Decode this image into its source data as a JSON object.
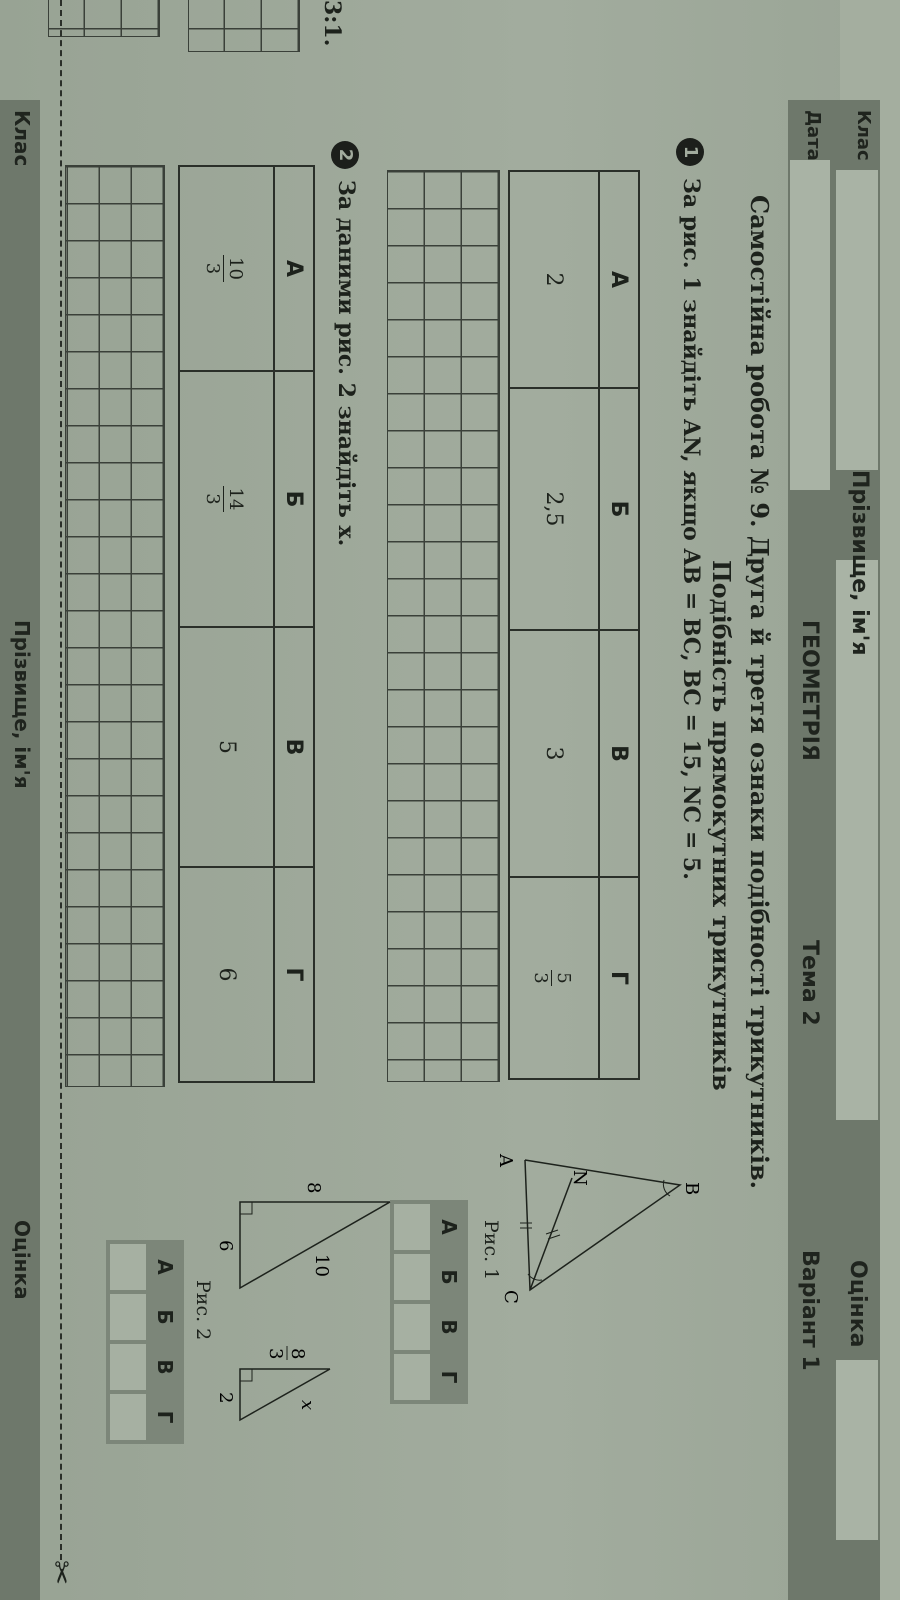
{
  "header": {
    "name_label": "Прізвище, ім'я",
    "date_label": "Дата",
    "class_label": "Клас",
    "subject": "ГЕОМЕТРІЯ",
    "topic": "Тема 2",
    "variant": "Варіант 1",
    "grade_label": "Оцінка"
  },
  "prev_page": {
    "fragment": "3:1."
  },
  "title": {
    "line1": "Самостійна робота № 9. Друга й третя ознаки подібності трикутників.",
    "line2": "Подібність прямокутних трикутників"
  },
  "tasks": [
    {
      "number": "1",
      "text": "За рис. 1 знайдіть AN, якщо AB = BC, BC = 15, NC = 5.",
      "options": [
        {
          "letter": "А",
          "value": "2"
        },
        {
          "letter": "Б",
          "value": "2,5"
        },
        {
          "letter": "В",
          "value": "3"
        },
        {
          "letter": "Г",
          "num": "5",
          "den": "3"
        }
      ],
      "figure": {
        "caption": "Рис. 1",
        "labels": [
          "A",
          "B",
          "C",
          "N"
        ]
      },
      "answer_letters": [
        "А",
        "Б",
        "В",
        "Г"
      ]
    },
    {
      "number": "2",
      "text": "За даними рис. 2 знайдіть x.",
      "options": [
        {
          "letter": "А",
          "num": "10",
          "den": "3"
        },
        {
          "letter": "Б",
          "num": "14",
          "den": "3"
        },
        {
          "letter": "В",
          "value": "5"
        },
        {
          "letter": "Г",
          "value": "6"
        }
      ],
      "figure": {
        "caption": "Рис. 2",
        "big": [
          "8",
          "6",
          "10"
        ],
        "small_num": "8",
        "small_den": "3",
        "small_leg": "2",
        "unknown": "x"
      },
      "answer_letters": [
        "А",
        "Б",
        "В",
        "Г"
      ]
    }
  ],
  "footer": {
    "class_label": "Клас",
    "name_label": "Прізвище, ім'я",
    "grade_label": "Оцінка"
  },
  "colors": {
    "paper": "#a2ac9e",
    "strip": "#6e786b",
    "ink": "#1d221c"
  }
}
